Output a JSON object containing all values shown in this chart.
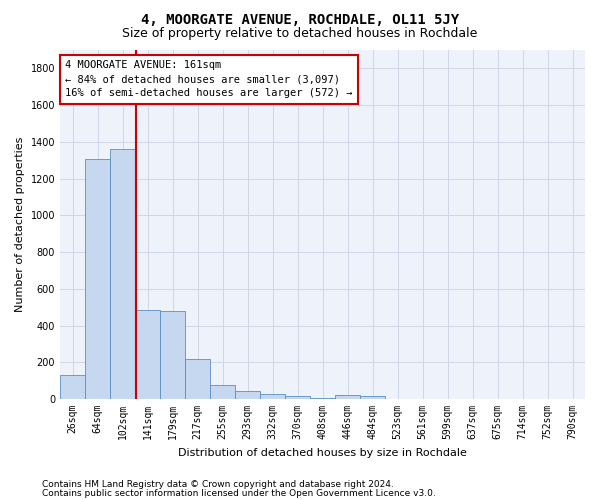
{
  "title": "4, MOORGATE AVENUE, ROCHDALE, OL11 5JY",
  "subtitle": "Size of property relative to detached houses in Rochdale",
  "xlabel": "Distribution of detached houses by size in Rochdale",
  "ylabel": "Number of detached properties",
  "categories": [
    "26sqm",
    "64sqm",
    "102sqm",
    "141sqm",
    "179sqm",
    "217sqm",
    "255sqm",
    "293sqm",
    "332sqm",
    "370sqm",
    "408sqm",
    "446sqm",
    "484sqm",
    "523sqm",
    "561sqm",
    "599sqm",
    "637sqm",
    "675sqm",
    "714sqm",
    "752sqm",
    "790sqm"
  ],
  "values": [
    130,
    1305,
    1360,
    485,
    480,
    220,
    75,
    45,
    25,
    15,
    5,
    20,
    15,
    0,
    0,
    0,
    0,
    0,
    0,
    0,
    0
  ],
  "bar_color": "#c5d8f0",
  "bar_edge_color": "#5a8fc7",
  "grid_color": "#d0d8e8",
  "background_color": "#eef2fb",
  "red_line_x": 2.55,
  "annotation_text": "4 MOORGATE AVENUE: 161sqm\n← 84% of detached houses are smaller (3,097)\n16% of semi-detached houses are larger (572) →",
  "annotation_box_color": "#ffffff",
  "annotation_box_edge": "#cc0000",
  "red_line_color": "#cc0000",
  "ylim": [
    0,
    1900
  ],
  "yticks": [
    0,
    200,
    400,
    600,
    800,
    1000,
    1200,
    1400,
    1600,
    1800
  ],
  "footer_line1": "Contains HM Land Registry data © Crown copyright and database right 2024.",
  "footer_line2": "Contains public sector information licensed under the Open Government Licence v3.0.",
  "title_fontsize": 10,
  "subtitle_fontsize": 9,
  "axis_label_fontsize": 8,
  "tick_fontsize": 7,
  "annotation_fontsize": 7.5,
  "footer_fontsize": 6.5,
  "ylabel_fontsize": 8
}
